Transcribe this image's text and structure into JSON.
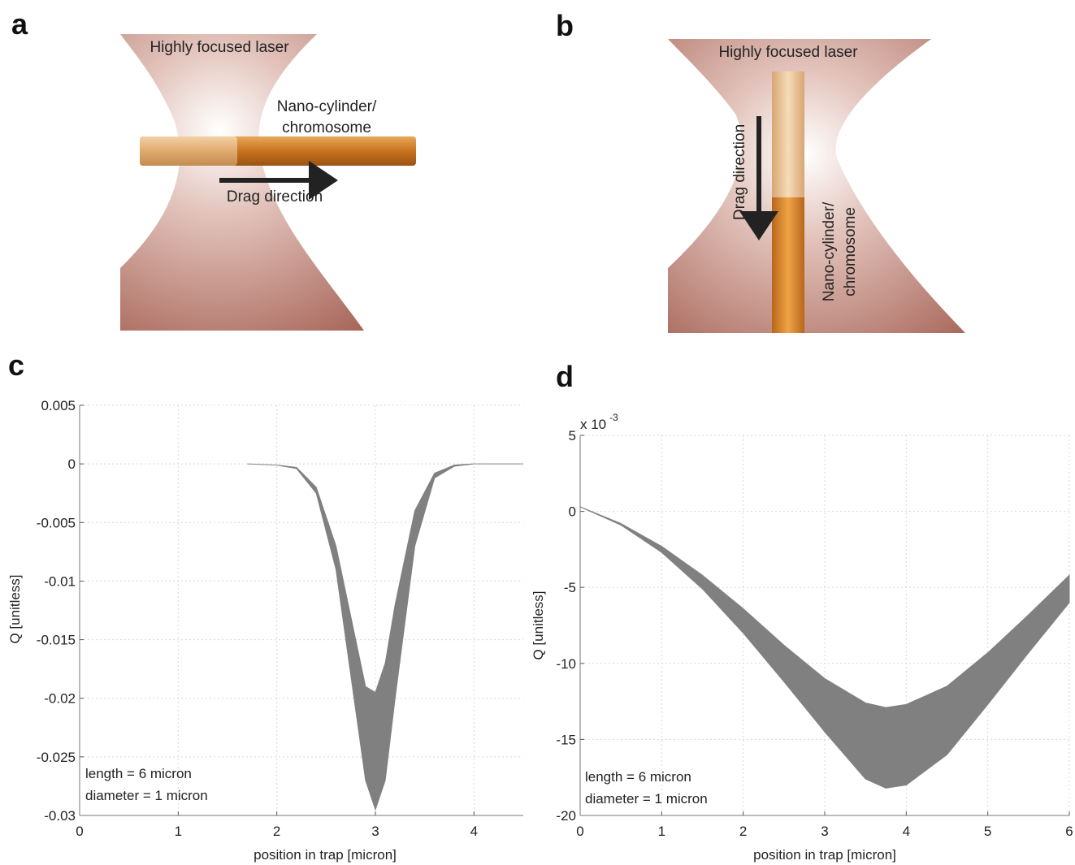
{
  "panel_labels": [
    "a",
    "b",
    "c",
    "d"
  ],
  "diagrams": [
    {
      "laser": "Highly focused laser",
      "object": [
        "Nano-cylinder/",
        "chromosome"
      ],
      "drag": "Drag direction"
    },
    {
      "laser": "Highly focused laser",
      "object": [
        "Nano-cylinder/",
        "chromosome"
      ],
      "drag": "Drag direction"
    }
  ],
  "chart_data": [
    {
      "type": "band",
      "xlabel": "position in trap [micron]",
      "ylabel": "Q [unitless]",
      "annotations": [
        "length = 6 micron",
        "diameter = 1 micron"
      ],
      "x": [
        1.7,
        2.0,
        2.2,
        2.4,
        2.6,
        2.8,
        2.9,
        3.0,
        3.1,
        3.2,
        3.4,
        3.6,
        3.8,
        4.0,
        4.5
      ],
      "upper": [
        0,
        -0.0001,
        -0.0003,
        -0.002,
        -0.007,
        -0.015,
        -0.019,
        -0.0195,
        -0.017,
        -0.012,
        -0.004,
        -0.0008,
        -0.0001,
        0,
        0
      ],
      "lower": [
        0,
        -0.0001,
        -0.0004,
        -0.0025,
        -0.009,
        -0.021,
        -0.027,
        -0.0295,
        -0.027,
        -0.02,
        -0.007,
        -0.0012,
        -0.0002,
        0,
        0
      ],
      "color": "#808080",
      "grid": true,
      "xlim": [
        0,
        4.5
      ],
      "xticks": [
        0,
        1,
        2,
        3,
        4
      ],
      "ylim": [
        -0.03,
        0.005
      ],
      "yticks": [
        -0.03,
        -0.025,
        -0.02,
        -0.015,
        -0.01,
        -0.005,
        0,
        0.005
      ]
    },
    {
      "type": "band",
      "xlabel": "position in trap [micron]",
      "ylabel": "Q [unitless]",
      "annotations": [
        "length = 6 micron",
        "diameter = 1 micron"
      ],
      "y_multiplier": "x 10",
      "y_multiplier_exp": "-3",
      "x": [
        0,
        0.5,
        1,
        1.5,
        2,
        2.5,
        3,
        3.5,
        3.75,
        4,
        4.5,
        5,
        5.5,
        6
      ],
      "upper": [
        0.3,
        -0.8,
        -2.3,
        -4.2,
        -6.4,
        -8.8,
        -11,
        -12.6,
        -12.9,
        -12.7,
        -11.5,
        -9.3,
        -6.8,
        -4.2
      ],
      "lower": [
        0.3,
        -0.9,
        -2.7,
        -5.1,
        -8,
        -11.2,
        -14.5,
        -17.6,
        -18.2,
        -18,
        -16,
        -12.7,
        -9.3,
        -6
      ],
      "color": "#808080",
      "grid": true,
      "xlim": [
        0,
        6
      ],
      "xticks": [
        0,
        1,
        2,
        3,
        4,
        5,
        6
      ],
      "ylim": [
        -20,
        5
      ],
      "yticks": [
        -20,
        -15,
        -10,
        -5,
        0,
        5
      ]
    }
  ]
}
